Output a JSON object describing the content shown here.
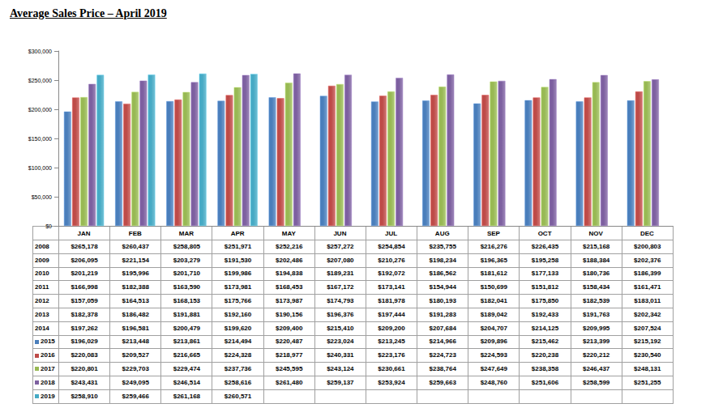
{
  "chart_data": {
    "type": "bar",
    "title": "Average Sales Price – April 2019",
    "categories": [
      "JAN",
      "FEB",
      "MAR",
      "APR",
      "MAY",
      "JUN",
      "JUL",
      "AUG",
      "SEP",
      "OCT",
      "NOV",
      "DEC"
    ],
    "series": [
      {
        "name": "2015",
        "color": "#4a7ebb",
        "values": [
          196029,
          213448,
          213861,
          214494,
          220487,
          223024,
          213245,
          214966,
          209896,
          215462,
          213399,
          215192
        ],
        "value_labels": [
          "$196,029",
          "$213,448",
          "$213,861",
          "$214,494",
          "$220,487",
          "$223,024",
          "$213,245",
          "$214,966",
          "$209,896",
          "$215,462",
          "$213,399",
          "$215,192"
        ]
      },
      {
        "name": "2016",
        "color": "#be4b48",
        "values": [
          220083,
          209527,
          216665,
          224328,
          218977,
          240331,
          223176,
          224723,
          224593,
          220238,
          220212,
          230540
        ],
        "value_labels": [
          "$220,083",
          "$209,527",
          "$216,665",
          "$224,328",
          "$218,977",
          "$240,331",
          "$223,176",
          "$224,723",
          "$224,593",
          "$220,238",
          "$220,212",
          "$230,540"
        ]
      },
      {
        "name": "2017",
        "color": "#98b954",
        "values": [
          220801,
          229703,
          229474,
          237736,
          245595,
          243124,
          230661,
          238764,
          247649,
          238358,
          246437,
          248131
        ],
        "value_labels": [
          "$220,801",
          "$229,703",
          "$229,474",
          "$237,736",
          "$245,595",
          "$243,124",
          "$230,661",
          "$238,764",
          "$247,649",
          "$238,358",
          "$246,437",
          "$248,131"
        ]
      },
      {
        "name": "2018",
        "color": "#7d60a0",
        "values": [
          243431,
          249095,
          246514,
          258616,
          261480,
          259137,
          253924,
          259663,
          248760,
          251606,
          258599,
          251255
        ],
        "value_labels": [
          "$243,431",
          "$249,095",
          "$246,514",
          "$258,616",
          "$261,480",
          "$259,137",
          "$253,924",
          "$259,663",
          "$248,760",
          "$251,606",
          "$258,599",
          "$251,255"
        ]
      },
      {
        "name": "2019",
        "color": "#46aac5",
        "values": [
          258910,
          259466,
          261168,
          260571,
          null,
          null,
          null,
          null,
          null,
          null,
          null,
          null
        ],
        "value_labels": [
          "$258,910",
          "$259,466",
          "$261,168",
          "$260,571",
          null,
          null,
          null,
          null,
          null,
          null,
          null,
          null
        ]
      }
    ],
    "ylim": [
      0,
      300000
    ],
    "yticks": [
      {
        "value": 0,
        "label": "$0"
      },
      {
        "value": 50000,
        "label": "$50,000"
      },
      {
        "value": 100000,
        "label": "$100,000"
      },
      {
        "value": 150000,
        "label": "$150,000"
      },
      {
        "value": 200000,
        "label": "$200,000"
      },
      {
        "value": 250000,
        "label": "$250,000"
      },
      {
        "value": 300000,
        "label": "$300,000"
      }
    ],
    "grid": false,
    "data_labels": false
  },
  "table": {
    "rows": [
      {
        "label": "2008",
        "cells": [
          "$265,178",
          "$260,437",
          "$258,805",
          "$251,971",
          "$252,216",
          "$257,272",
          "$254,854",
          "$235,755",
          "$216,276",
          "$226,435",
          "$215,168",
          "$200,803"
        ]
      },
      {
        "label": "2009",
        "cells": [
          "$206,095",
          "$221,154",
          "$203,279",
          "$191,530",
          "$202,486",
          "$207,080",
          "$210,276",
          "$198,234",
          "$196,365",
          "$195,258",
          "$188,384",
          "$202,376"
        ]
      },
      {
        "label": "2010",
        "cells": [
          "$201,219",
          "$195,996",
          "$201,710",
          "$199,986",
          "$194,838",
          "$189,231",
          "$192,072",
          "$186,562",
          "$181,612",
          "$177,133",
          "$180,736",
          "$186,399"
        ]
      },
      {
        "label": "2011",
        "cells": [
          "$166,998",
          "$182,388",
          "$163,590",
          "$173,981",
          "$168,453",
          "$167,172",
          "$173,141",
          "$154,944",
          "$150,699",
          "$151,812",
          "$158,434",
          "$161,471"
        ]
      },
      {
        "label": "2012",
        "cells": [
          "$157,059",
          "$164,513",
          "$168,153",
          "$175,766",
          "$173,987",
          "$174,793",
          "$181,978",
          "$180,193",
          "$182,041",
          "$175,850",
          "$182,539",
          "$183,011"
        ]
      },
      {
        "label": "2013",
        "cells": [
          "$182,378",
          "$186,482",
          "$191,881",
          "$192,160",
          "$190,156",
          "$196,376",
          "$197,444",
          "$191,283",
          "$189,042",
          "$192,433",
          "$191,763",
          "$202,342"
        ]
      },
      {
        "label": "2014",
        "cells": [
          "$197,262",
          "$196,581",
          "$200,479",
          "$199,620",
          "$209,400",
          "$215,410",
          "$209,200",
          "$207,684",
          "$204,707",
          "$214,125",
          "$209,995",
          "$207,524"
        ]
      }
    ]
  }
}
